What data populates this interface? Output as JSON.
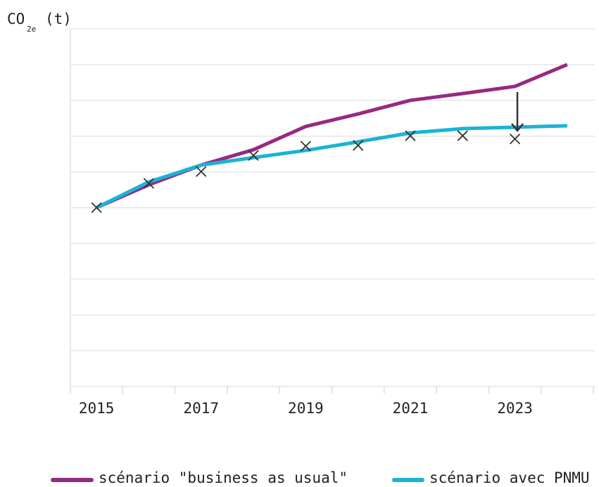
{
  "chart_data": {
    "type": "line",
    "ylabel": {
      "main": "CO",
      "sub": "2e",
      "unit": "(t)"
    },
    "categories": [
      "2015",
      null,
      "2017",
      null,
      "2019",
      null,
      "2021",
      null,
      "2023",
      null
    ],
    "ylim": [
      0,
      10
    ],
    "yticks": [
      0,
      1,
      2,
      3,
      4,
      5,
      6,
      7,
      8,
      9,
      10
    ],
    "grid": true,
    "legend": "bottom",
    "series": [
      {
        "name": "scénario \"business as usual\"",
        "color": "#962a83",
        "values": [
          5.0,
          5.64,
          6.19,
          6.62,
          7.27,
          7.62,
          8.0,
          8.19,
          8.39,
          9.0
        ]
      },
      {
        "name": "scénario avec PNMU",
        "color": "#1ab3d6",
        "values": [
          5.0,
          5.72,
          6.19,
          6.4,
          6.6,
          6.84,
          7.09,
          7.21,
          7.25,
          7.29
        ]
      }
    ],
    "points": {
      "color": "#333333",
      "values": [
        5.0,
        5.68,
        6.01,
        6.46,
        6.72,
        6.74,
        7.01,
        7.01,
        6.92,
        null
      ]
    }
  }
}
